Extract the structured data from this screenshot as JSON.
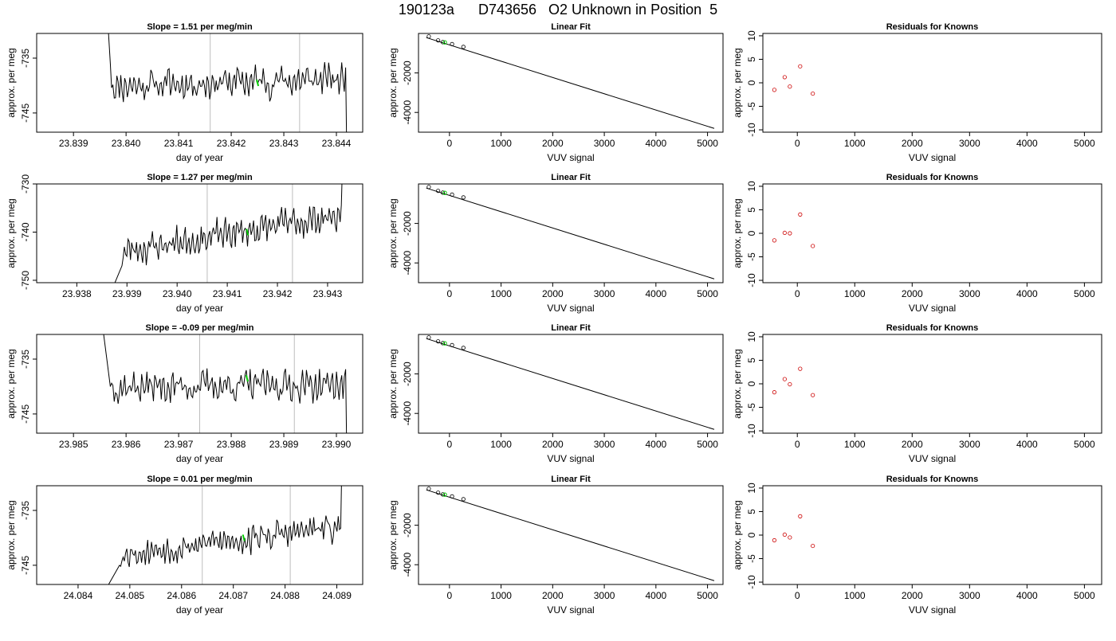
{
  "figure": {
    "title": "190123a      D743656   O2 Unknown in Position  5"
  },
  "colors": {
    "line": "#000000",
    "vline": "#bdbdbd",
    "highlight": "#00cc00",
    "residual": "#cc0000"
  },
  "chart_data": [
    {
      "type": "line",
      "title": "Slope =  1.51  per meg/min",
      "xlabel": "day of year",
      "ylabel": "approx. per meg",
      "xlim": [
        23.8383,
        23.8445
      ],
      "ylim": [
        -748.5,
        -730.5
      ],
      "xticks": [
        "23.839",
        "23.840",
        "23.841",
        "23.842",
        "23.843",
        "23.844"
      ],
      "xtick_values": [
        23.839,
        23.84,
        23.841,
        23.842,
        23.843,
        23.844
      ],
      "yticks": [
        "-745",
        "-735"
      ],
      "ytick_values": [
        -745,
        -735
      ],
      "vlines": [
        23.8416,
        23.8433
      ],
      "highlight_point": [
        23.8425,
        -739.5
      ],
      "trace_start": [
        23.8396,
        -720
      ],
      "trace_settle": [
        23.8397,
        -736
      ],
      "trace_end": [
        23.8442,
        -755
      ],
      "trace_base": -740,
      "trace_trend": 1.2,
      "trace_amp": 1.8,
      "trace_seed": 11
    },
    {
      "type": "scatter",
      "title": "Linear Fit",
      "xlabel": "VUV signal",
      "ylabel": "approx. per meg",
      "xlim": [
        -600,
        5300
      ],
      "ylim": [
        -5000,
        0
      ],
      "xticks": [
        "0",
        "1000",
        "2000",
        "3000",
        "4000",
        "5000"
      ],
      "xtick_values": [
        0,
        1000,
        2000,
        3000,
        4000,
        5000
      ],
      "yticks": [
        "-4000",
        "-2000"
      ],
      "ytick_values": [
        -4000,
        -2000
      ],
      "fit_line": [
        [
          -450,
          -210
        ],
        [
          5130,
          -4810
        ]
      ],
      "points": [
        [
          -400,
          -150
        ],
        [
          -220,
          -350
        ],
        [
          -130,
          -440
        ],
        [
          50,
          -540
        ],
        [
          270,
          -680
        ]
      ],
      "highlight": [
        [
          -90,
          -450
        ]
      ]
    },
    {
      "type": "scatter",
      "title": "Residuals for Knowns",
      "xlabel": "VUV signal",
      "ylabel": "approx. per meg",
      "xlim": [
        -600,
        5300
      ],
      "ylim": [
        -10.5,
        10.5
      ],
      "xticks": [
        "0",
        "1000",
        "2000",
        "3000",
        "4000",
        "5000"
      ],
      "xtick_values": [
        0,
        1000,
        2000,
        3000,
        4000,
        5000
      ],
      "yticks": [
        "-10",
        "-5",
        "0",
        "5",
        "10"
      ],
      "ytick_values": [
        -10,
        -5,
        0,
        5,
        10
      ],
      "points": [
        [
          -400,
          -1.5
        ],
        [
          -220,
          1.2
        ],
        [
          -130,
          -0.8
        ],
        [
          50,
          3.5
        ],
        [
          270,
          -2.3
        ]
      ]
    },
    {
      "type": "line",
      "title": "Slope =  1.27  per meg/min",
      "xlabel": "day of year",
      "ylabel": "approx. per meg",
      "xlim": [
        23.9372,
        23.9437
      ],
      "ylim": [
        -750.5,
        -730
      ],
      "xticks": [
        "23.938",
        "23.939",
        "23.940",
        "23.941",
        "23.942",
        "23.943"
      ],
      "xtick_values": [
        23.938,
        23.939,
        23.94,
        23.941,
        23.942,
        23.943
      ],
      "yticks": [
        "-750",
        "-740",
        "-730"
      ],
      "ytick_values": [
        -750,
        -740,
        -730
      ],
      "vlines": [
        23.9406,
        23.9423
      ],
      "highlight_point": [
        23.9414,
        -740
      ],
      "trace_start": [
        23.9387,
        -752
      ],
      "trace_settle": [
        23.9389,
        -747
      ],
      "trace_end": [
        23.9433,
        -725
      ],
      "trace_base": -744,
      "trace_trend": 7.5,
      "trace_amp": 1.9,
      "trace_seed": 23
    },
    {
      "type": "scatter",
      "title": "Linear Fit",
      "xlabel": "VUV signal",
      "ylabel": "approx. per meg",
      "xlim": [
        -600,
        5300
      ],
      "ylim": [
        -5000,
        0
      ],
      "xticks": [
        "0",
        "1000",
        "2000",
        "3000",
        "4000",
        "5000"
      ],
      "xtick_values": [
        0,
        1000,
        2000,
        3000,
        4000,
        5000
      ],
      "yticks": [
        "-4000",
        "-2000"
      ],
      "ytick_values": [
        -4000,
        -2000
      ],
      "fit_line": [
        [
          -450,
          -210
        ],
        [
          5130,
          -4810
        ]
      ],
      "points": [
        [
          -400,
          -150
        ],
        [
          -220,
          -350
        ],
        [
          -130,
          -440
        ],
        [
          50,
          -540
        ],
        [
          270,
          -680
        ]
      ],
      "highlight": [
        [
          -90,
          -450
        ]
      ]
    },
    {
      "type": "scatter",
      "title": "Residuals for Knowns",
      "xlabel": "VUV signal",
      "ylabel": "approx. per meg",
      "xlim": [
        -600,
        5300
      ],
      "ylim": [
        -10.5,
        10.5
      ],
      "xticks": [
        "0",
        "1000",
        "2000",
        "3000",
        "4000",
        "5000"
      ],
      "xtick_values": [
        0,
        1000,
        2000,
        3000,
        4000,
        5000
      ],
      "yticks": [
        "-10",
        "-5",
        "0",
        "5",
        "10"
      ],
      "ytick_values": [
        -10,
        -5,
        0,
        5,
        10
      ],
      "points": [
        [
          -400,
          -1.5
        ],
        [
          -220,
          0.1
        ],
        [
          -130,
          0.0
        ],
        [
          50,
          4.0
        ],
        [
          270,
          -2.7
        ]
      ]
    },
    {
      "type": "line",
      "title": "Slope =  -0.09  per meg/min",
      "xlabel": "day of year",
      "ylabel": "approx. per meg",
      "xlim": [
        23.9843,
        23.9905
      ],
      "ylim": [
        -748.5,
        -730.5
      ],
      "xticks": [
        "23.985",
        "23.986",
        "23.987",
        "23.988",
        "23.989",
        "23.990"
      ],
      "xtick_values": [
        23.985,
        23.986,
        23.987,
        23.988,
        23.989,
        23.99
      ],
      "yticks": [
        "-745",
        "-735"
      ],
      "ytick_values": [
        -745,
        -735
      ],
      "vlines": [
        23.9874,
        23.9892
      ],
      "highlight_point": [
        23.9883,
        -738.5
      ],
      "trace_start": [
        23.9855,
        -725
      ],
      "trace_settle": [
        23.9857,
        -740
      ],
      "trace_end": [
        23.9902,
        -755
      ],
      "trace_base": -740,
      "trace_trend": 0.3,
      "trace_amp": 1.8,
      "trace_seed": 37
    },
    {
      "type": "scatter",
      "title": "Linear Fit",
      "xlabel": "VUV signal",
      "ylabel": "approx. per meg",
      "xlim": [
        -600,
        5300
      ],
      "ylim": [
        -5000,
        0
      ],
      "xticks": [
        "0",
        "1000",
        "2000",
        "3000",
        "4000",
        "5000"
      ],
      "xtick_values": [
        0,
        1000,
        2000,
        3000,
        4000,
        5000
      ],
      "yticks": [
        "-4000",
        "-2000"
      ],
      "ytick_values": [
        -4000,
        -2000
      ],
      "fit_line": [
        [
          -450,
          -210
        ],
        [
          5130,
          -4810
        ]
      ],
      "points": [
        [
          -400,
          -150
        ],
        [
          -220,
          -350
        ],
        [
          -130,
          -440
        ],
        [
          50,
          -540
        ],
        [
          270,
          -680
        ]
      ],
      "highlight": [
        [
          -90,
          -450
        ]
      ]
    },
    {
      "type": "scatter",
      "title": "Residuals for Knowns",
      "xlabel": "VUV signal",
      "ylabel": "approx. per meg",
      "xlim": [
        -600,
        5300
      ],
      "ylim": [
        -10.5,
        10.5
      ],
      "xticks": [
        "0",
        "1000",
        "2000",
        "3000",
        "4000",
        "5000"
      ],
      "xtick_values": [
        0,
        1000,
        2000,
        3000,
        4000,
        5000
      ],
      "yticks": [
        "-10",
        "-5",
        "0",
        "5",
        "10"
      ],
      "ytick_values": [
        -10,
        -5,
        0,
        5,
        10
      ],
      "points": [
        [
          -400,
          -1.8
        ],
        [
          -220,
          1.0
        ],
        [
          -130,
          -0.1
        ],
        [
          50,
          3.2
        ],
        [
          270,
          -2.4
        ]
      ]
    },
    {
      "type": "line",
      "title": "Slope =  0.01  per meg/min",
      "xlabel": "day of year",
      "ylabel": "approx. per meg",
      "xlim": [
        24.0832,
        24.0895
      ],
      "ylim": [
        -748.5,
        -730.5
      ],
      "xticks": [
        "24.084",
        "24.085",
        "24.086",
        "24.087",
        "24.088",
        "24.089"
      ],
      "xtick_values": [
        24.084,
        24.085,
        24.086,
        24.087,
        24.088,
        24.089
      ],
      "yticks": [
        "-745",
        "-735"
      ],
      "ytick_values": [
        -745,
        -735
      ],
      "vlines": [
        24.0864,
        24.0881
      ],
      "highlight_point": [
        24.0872,
        -740
      ],
      "trace_start": [
        24.0845,
        -750
      ],
      "trace_settle": [
        24.0848,
        -745
      ],
      "trace_end": [
        24.0891,
        -725
      ],
      "trace_base": -743,
      "trace_trend": 5.0,
      "trace_amp": 1.6,
      "trace_seed": 53
    },
    {
      "type": "scatter",
      "title": "Linear Fit",
      "xlabel": "VUV signal",
      "ylabel": "approx. per meg",
      "xlim": [
        -600,
        5300
      ],
      "ylim": [
        -5000,
        0
      ],
      "xticks": [
        "0",
        "1000",
        "2000",
        "3000",
        "4000",
        "5000"
      ],
      "xtick_values": [
        0,
        1000,
        2000,
        3000,
        4000,
        5000
      ],
      "yticks": [
        "-4000",
        "-2000"
      ],
      "ytick_values": [
        -4000,
        -2000
      ],
      "fit_line": [
        [
          -450,
          -210
        ],
        [
          5130,
          -4810
        ]
      ],
      "points": [
        [
          -400,
          -150
        ],
        [
          -220,
          -350
        ],
        [
          -130,
          -440
        ],
        [
          50,
          -540
        ],
        [
          270,
          -680
        ]
      ],
      "highlight": [
        [
          -90,
          -450
        ]
      ]
    },
    {
      "type": "scatter",
      "title": "Residuals for Knowns",
      "xlabel": "VUV signal",
      "ylabel": "approx. per meg",
      "xlim": [
        -600,
        5300
      ],
      "ylim": [
        -10.5,
        10.5
      ],
      "xticks": [
        "0",
        "1000",
        "2000",
        "3000",
        "4000",
        "5000"
      ],
      "xtick_values": [
        0,
        1000,
        2000,
        3000,
        4000,
        5000
      ],
      "yticks": [
        "-10",
        "-5",
        "0",
        "5",
        "10"
      ],
      "points": [
        [
          -400,
          -1.1
        ],
        [
          -220,
          0.1
        ],
        [
          -130,
          -0.5
        ],
        [
          50,
          4.0
        ],
        [
          270,
          -2.3
        ]
      ]
    }
  ]
}
